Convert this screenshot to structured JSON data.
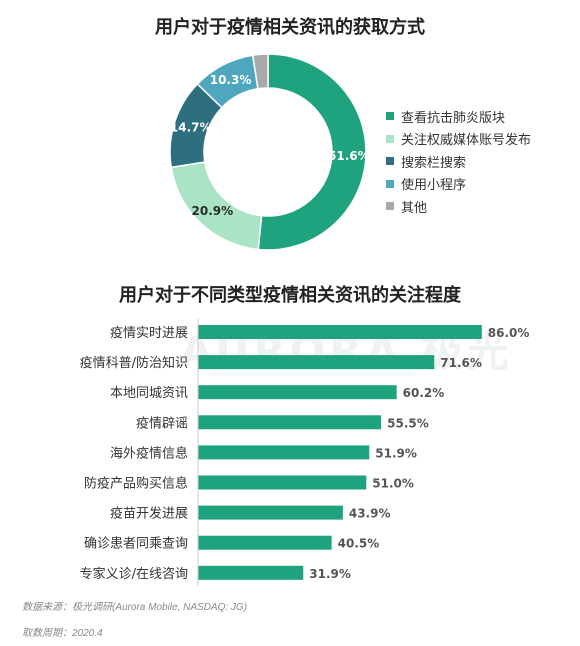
{
  "chart_data": [
    {
      "type": "pie",
      "title": "用户对于疫情相关资讯的获取方式",
      "categories": [
        "查看抗击肺炎版块",
        "关注权威媒体账号发布",
        "搜索栏搜索",
        "使用小程序",
        "其他"
      ],
      "values": [
        51.6,
        20.9,
        14.7,
        10.3,
        2.5
      ],
      "value_labels": [
        "51.6%",
        "20.9%",
        "14.7%",
        "10.3%",
        ""
      ],
      "colors": [
        "#1fa37f",
        "#a9e4c6",
        "#2d6f7f",
        "#4ea7bf",
        "#a9a9a9"
      ],
      "legend": "right"
    },
    {
      "type": "bar",
      "orientation": "horizontal",
      "title": "用户对于不同类型疫情相关资讯的关注程度",
      "categories": [
        "疫情实时进展",
        "疫情科普/防治知识",
        "本地同城资讯",
        "疫情辟谣",
        "海外疫情信息",
        "防疫产品购买信息",
        "疫苗开发进展",
        "确诊患者同乘查询",
        "专家义诊/在线咨询"
      ],
      "values": [
        86.0,
        71.6,
        60.2,
        55.5,
        51.9,
        51.0,
        43.9,
        40.5,
        31.9
      ],
      "value_labels": [
        "86.0%",
        "71.6%",
        "60.2%",
        "55.5%",
        "51.9%",
        "51.0%",
        "43.9%",
        "40.5%",
        "31.9%"
      ],
      "color": "#1fa37f",
      "xlim": [
        0,
        100
      ]
    }
  ],
  "watermark": "AURORA 极光",
  "footer": {
    "source": "数据来源：极光调研(Aurora Mobile, NASDAQ: JG)",
    "period": "取数周期：2020.4"
  }
}
